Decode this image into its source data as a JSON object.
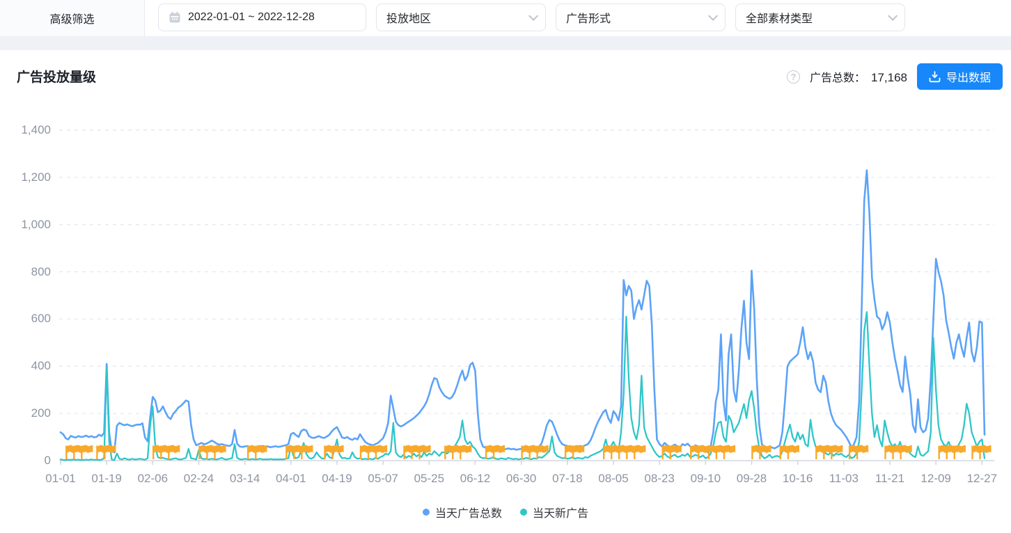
{
  "filters": {
    "advanced_label": "高级筛选",
    "date_range": "2022-01-01 ~ 2022-12-28",
    "region_placeholder": "投放地区",
    "ad_format_placeholder": "广告形式",
    "material_type_value": "全部素材类型"
  },
  "header": {
    "title": "广告投放量级",
    "total_label": "广告总数：",
    "total_value": "17,168",
    "export_label": "导出数据"
  },
  "colors": {
    "series_total": "#5ca3f7",
    "series_new": "#2ec6c8",
    "flag": "#f8a92b",
    "button": "#1787fa",
    "grid": "#e6e9f0",
    "axis": "#d2d6de"
  },
  "chart_data": {
    "type": "line",
    "title": "广告投放量级",
    "start_date": "2022-01-01",
    "end_date": "2022-12-28",
    "ylim": [
      0,
      1400
    ],
    "y_tick_values": [
      0,
      200,
      400,
      600,
      800,
      1000,
      1200,
      1400
    ],
    "y_tick_labels": [
      "0",
      "200",
      "400",
      "600",
      "800",
      "1,000",
      "1,200",
      "1,400"
    ],
    "x_tick_labels": [
      "01-01",
      "01-19",
      "02-06",
      "02-24",
      "03-14",
      "04-01",
      "04-19",
      "05-07",
      "05-25",
      "06-12",
      "06-30",
      "07-18",
      "08-05",
      "08-23",
      "09-10",
      "09-28",
      "10-16",
      "11-03",
      "11-21",
      "12-09",
      "12-27"
    ],
    "x_tick_interval_days": 18,
    "grid": "horizontal-dashed",
    "legend_position": "bottom",
    "series": [
      {
        "name": "当天广告总数",
        "color": "#5ca3f7",
        "values": [
          120,
          112,
          95,
          90,
          105,
          100,
          98,
          104,
          100,
          102,
          106,
          100,
          104,
          99,
          100,
          110,
          104,
          118,
          410,
          120,
          40,
          35,
          148,
          160,
          154,
          150,
          154,
          149,
          146,
          150,
          153,
          152,
          158,
          98,
          82,
          185,
          270,
          255,
          205,
          212,
          230,
          205,
          185,
          176,
          198,
          210,
          225,
          232,
          243,
          255,
          250,
          150,
          90,
          65,
          70,
          75,
          70,
          72,
          78,
          85,
          80,
          72,
          68,
          70,
          66,
          64,
          62,
          70,
          130,
          72,
          60,
          58,
          60,
          62,
          58,
          60,
          57,
          59,
          60,
          62,
          58,
          60,
          57,
          59,
          61,
          58,
          60,
          63,
          65,
          70,
          112,
          118,
          108,
          100,
          125,
          132,
          128,
          105,
          98,
          96,
          100,
          104,
          98,
          96,
          102,
          110,
          124,
          135,
          142,
          120,
          98,
          95,
          100,
          92,
          88,
          95,
          90,
          112,
          95,
          80,
          72,
          68,
          65,
          70,
          75,
          85,
          95,
          120,
          160,
          275,
          220,
          165,
          150,
          145,
          150,
          158,
          165,
          172,
          180,
          190,
          200,
          215,
          230,
          250,
          280,
          320,
          350,
          345,
          310,
          290,
          275,
          268,
          262,
          270,
          290,
          320,
          355,
          382,
          340,
          360,
          405,
          415,
          380,
          200,
          90,
          60,
          55,
          52,
          50,
          55,
          52,
          48,
          50,
          47,
          49,
          52,
          48,
          50,
          46,
          48,
          50,
          52,
          55,
          50,
          48,
          52,
          56,
          60,
          75,
          110,
          150,
          172,
          165,
          140,
          110,
          85,
          70,
          65,
          62,
          58,
          60,
          55,
          58,
          62,
          60,
          65,
          70,
          85,
          110,
          140,
          165,
          185,
          205,
          215,
          180,
          160,
          210,
          195,
          170,
          230,
          765,
          700,
          740,
          720,
          600,
          650,
          680,
          640,
          700,
          762,
          740,
          580,
          300,
          90,
          70,
          60,
          75,
          65,
          58,
          62,
          68,
          60,
          55,
          70,
          65,
          72,
          60,
          55,
          65,
          60,
          58,
          62,
          40,
          35,
          60,
          120,
          250,
          300,
          535,
          250,
          170,
          450,
          535,
          300,
          250,
          380,
          560,
          677,
          500,
          430,
          805,
          640,
          350,
          150,
          70,
          55,
          50,
          60,
          55,
          52,
          58,
          65,
          120,
          250,
          400,
          420,
          430,
          440,
          450,
          500,
          565,
          480,
          430,
          460,
          420,
          330,
          300,
          290,
          360,
          330,
          250,
          200,
          170,
          150,
          140,
          130,
          115,
          100,
          80,
          56,
          70,
          100,
          250,
          650,
          1100,
          1230,
          1050,
          776,
          682,
          610,
          600,
          556,
          580,
          629,
          585,
          500,
          432,
          380,
          320,
          291,
          441,
          350,
          280,
          150,
          120,
          260,
          140,
          120,
          130,
          180,
          350,
          600,
          855,
          800,
          760,
          700,
          594,
          541,
          480,
          432,
          500,
          535,
          480,
          440,
          520,
          585,
          460,
          420,
          480,
          590,
          585,
          110
        ]
      },
      {
        "name": "当天新广告",
        "color": "#2ec6c8",
        "values": [
          5,
          3,
          2,
          4,
          3,
          5,
          3,
          4,
          2,
          3,
          4,
          3,
          5,
          3,
          4,
          3,
          4,
          10,
          395,
          80,
          5,
          2,
          30,
          8,
          5,
          10,
          6,
          4,
          8,
          5,
          6,
          8,
          6,
          4,
          10,
          150,
          230,
          60,
          15,
          10,
          12,
          8,
          6,
          5,
          8,
          10,
          6,
          5,
          8,
          12,
          50,
          10,
          8,
          5,
          45,
          10,
          6,
          8,
          5,
          8,
          6,
          5,
          8,
          12,
          6,
          5,
          8,
          10,
          70,
          12,
          6,
          5,
          8,
          6,
          5,
          7,
          5,
          6,
          8,
          5,
          6,
          5,
          7,
          5,
          6,
          5,
          6,
          5,
          8,
          10,
          60,
          20,
          10,
          15,
          40,
          75,
          30,
          12,
          8,
          15,
          35,
          20,
          10,
          8,
          30,
          15,
          10,
          45,
          90,
          25,
          10,
          12,
          8,
          10,
          35,
          15,
          8,
          10,
          6,
          8,
          6,
          8,
          5,
          12,
          8,
          15,
          20,
          30,
          25,
          40,
          160,
          35,
          20,
          15,
          25,
          12,
          20,
          15,
          30,
          18,
          25,
          15,
          35,
          20,
          30,
          25,
          40,
          30,
          20,
          35,
          35,
          30,
          40,
          55,
          60,
          80,
          100,
          170,
          90,
          70,
          80,
          60,
          50,
          30,
          15,
          10,
          12,
          8,
          10,
          15,
          8,
          6,
          10,
          8,
          6,
          12,
          8,
          6,
          8,
          5,
          8,
          8,
          12,
          8,
          6,
          10,
          8,
          15,
          12,
          20,
          30,
          40,
          103,
          35,
          20,
          15,
          10,
          12,
          8,
          10,
          15,
          8,
          12,
          10,
          8,
          15,
          12,
          20,
          25,
          30,
          35,
          40,
          50,
          90,
          45,
          60,
          80,
          55,
          40,
          120,
          280,
          610,
          350,
          180,
          120,
          90,
          150,
          360,
          140,
          100,
          80,
          60,
          40,
          25,
          15,
          20,
          30,
          18,
          12,
          20,
          25,
          15,
          18,
          25,
          20,
          30,
          15,
          18,
          25,
          20,
          15,
          22,
          10,
          15,
          30,
          60,
          120,
          160,
          165,
          100,
          80,
          190,
          170,
          120,
          140,
          160,
          200,
          240,
          180,
          255,
          295,
          220,
          120,
          50,
          20,
          10,
          15,
          25,
          12,
          18,
          20,
          15,
          40,
          80,
          120,
          153,
          100,
          80,
          120,
          90,
          110,
          70,
          60,
          173,
          100,
          60,
          40,
          55,
          45,
          30,
          25,
          35,
          20,
          30,
          25,
          30,
          20,
          15,
          25,
          10,
          15,
          30,
          80,
          300,
          550,
          630,
          400,
          200,
          100,
          150,
          90,
          60,
          170,
          120,
          80,
          60,
          70,
          50,
          80,
          40,
          60,
          45,
          30,
          20,
          15,
          60,
          25,
          20,
          30,
          40,
          120,
          520,
          300,
          150,
          90,
          70,
          60,
          80,
          50,
          60,
          45,
          70,
          90,
          150,
          241,
          200,
          120,
          90,
          60,
          80,
          90,
          10
        ]
      }
    ],
    "flag_markers": {
      "color": "#f8a92b",
      "icon": "flag-icon",
      "days": [
        2,
        5,
        8,
        14,
        17,
        36,
        39,
        42,
        54,
        57,
        60,
        73,
        76,
        88,
        91,
        94,
        103,
        106,
        117,
        120,
        123,
        134,
        137,
        140,
        150,
        153,
        156,
        166,
        169,
        180,
        183,
        186,
        197,
        200,
        212,
        215,
        218,
        221,
        224,
        235,
        238,
        246,
        249,
        253,
        256,
        259,
        270,
        273,
        281,
        284,
        295,
        298,
        301,
        308,
        311,
        322,
        325,
        328,
        343,
        346,
        349,
        356,
        359
      ]
    }
  }
}
